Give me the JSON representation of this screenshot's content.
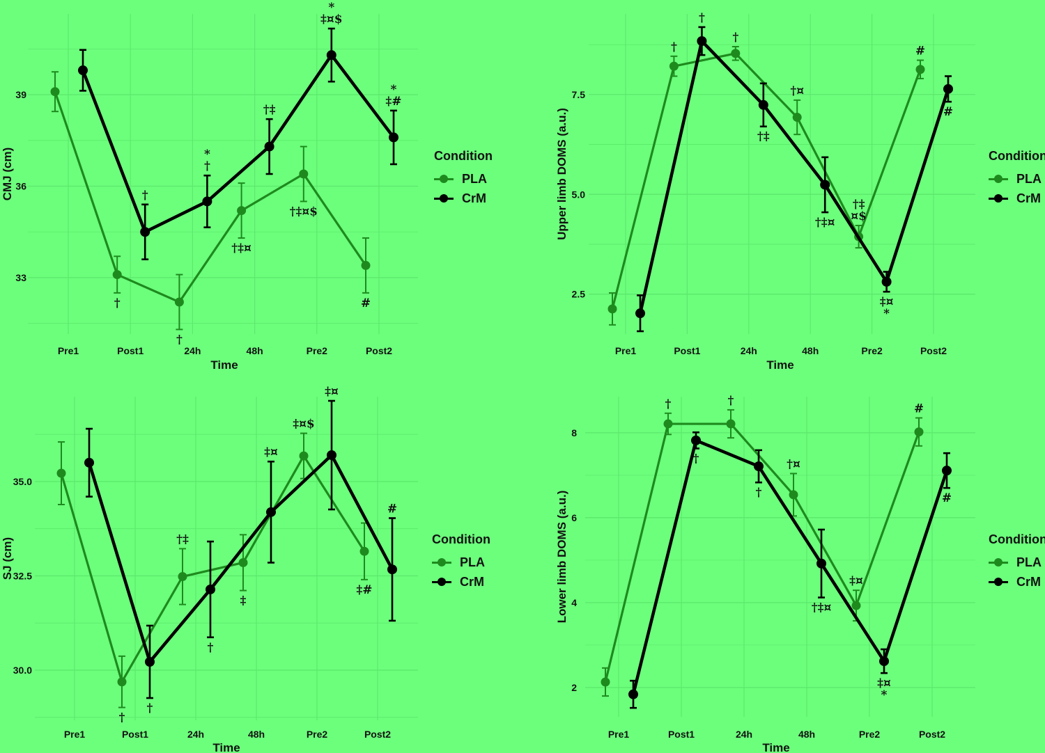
{
  "colors": {
    "background": "#6cff7c",
    "grid": "#5de96d",
    "PLA": "#1e8a1e",
    "CrM": "#000000"
  },
  "legend": {
    "title": "Condition",
    "entries": [
      "PLA",
      "CrM"
    ]
  },
  "chart_data": [
    {
      "type": "line",
      "ylabel": "CMJ (cm)",
      "xlabel": "Time",
      "categories": [
        "Pre1",
        "Post1",
        "24h",
        "48h",
        "Pre2",
        "Post2"
      ],
      "yticks": [
        33,
        36,
        39
      ],
      "ytick_labels": [
        "33",
        "36",
        "39"
      ],
      "ylim": [
        31.15,
        41.65
      ],
      "grid": true,
      "legend_position": "right",
      "series": [
        {
          "name": "PLA",
          "values": [
            39.1,
            33.1,
            32.2,
            35.2,
            36.4,
            33.4
          ],
          "errors": [
            0.65,
            0.6,
            0.9,
            0.9,
            0.9,
            0.9
          ],
          "annotations": [
            null,
            {
              "lines": [
                "†"
              ],
              "pos": "below"
            },
            {
              "lines": [
                "†"
              ],
              "pos": "below"
            },
            {
              "lines": [
                "†‡¤"
              ],
              "pos": "below"
            },
            {
              "lines": [
                "†‡¤$"
              ],
              "pos": "below"
            },
            {
              "lines": [
                "#"
              ],
              "pos": "below"
            }
          ]
        },
        {
          "name": "CrM",
          "values": [
            39.8,
            34.5,
            35.5,
            37.3,
            40.3,
            37.6
          ],
          "errors": [
            0.67,
            0.9,
            0.85,
            0.9,
            0.87,
            0.88
          ],
          "annotations": [
            null,
            {
              "lines": [
                "†"
              ],
              "pos": "above"
            },
            {
              "lines": [
                "*",
                "†"
              ],
              "pos": "above"
            },
            {
              "lines": [
                "†‡"
              ],
              "pos": "above"
            },
            {
              "lines": [
                "*",
                "‡¤$"
              ],
              "pos": "above"
            },
            {
              "lines": [
                "*",
                "‡#"
              ],
              "pos": "above"
            }
          ]
        }
      ]
    },
    {
      "type": "line",
      "ylabel": "Upper limb DOMS (a.u.)",
      "xlabel": "Time",
      "categories": [
        "Pre1",
        "Post1",
        "24h",
        "48h",
        "Pre2",
        "Post2"
      ],
      "yticks": [
        2.5,
        5.0,
        7.5
      ],
      "ytick_labels": [
        "2.5",
        "5.0",
        "7.5"
      ],
      "ylim": [
        1.5,
        9.52
      ],
      "grid": true,
      "legend_position": "right",
      "series": [
        {
          "name": "PLA",
          "values": [
            2.13,
            8.21,
            8.53,
            6.93,
            3.94,
            8.13
          ],
          "errors": [
            0.4,
            0.25,
            0.17,
            0.43,
            0.28,
            0.23
          ],
          "annotations": [
            null,
            {
              "lines": [
                "†"
              ],
              "pos": "above"
            },
            {
              "lines": [
                "†"
              ],
              "pos": "above"
            },
            {
              "lines": [
                "†¤"
              ],
              "pos": "above"
            },
            {
              "lines": [
                "†‡",
                "¤$"
              ],
              "pos": "above"
            },
            {
              "lines": [
                "#"
              ],
              "pos": "above"
            }
          ]
        },
        {
          "name": "CrM",
          "values": [
            2.02,
            8.84,
            7.24,
            5.24,
            2.81,
            7.64
          ],
          "errors": [
            0.45,
            0.35,
            0.54,
            0.69,
            0.25,
            0.32
          ],
          "annotations": [
            null,
            {
              "lines": [
                "†"
              ],
              "pos": "above"
            },
            {
              "lines": [
                "†‡"
              ],
              "pos": "below"
            },
            {
              "lines": [
                "†‡¤"
              ],
              "pos": "below"
            },
            {
              "lines": [
                "‡¤",
                "*"
              ],
              "pos": "below"
            },
            {
              "lines": [
                "#"
              ],
              "pos": "below"
            }
          ]
        }
      ]
    },
    {
      "type": "line",
      "ylabel": "SJ (cm)",
      "xlabel": "Time",
      "categories": [
        "Pre1",
        "Post1",
        "24h",
        "48h",
        "Pre2",
        "Post2"
      ],
      "yticks": [
        30.0,
        32.5,
        35.0
      ],
      "ytick_labels": [
        "30.0",
        "32.5",
        "35.0"
      ],
      "ylim": [
        28.67,
        37.25
      ],
      "grid": true,
      "legend_position": "right",
      "series": [
        {
          "name": "PLA",
          "values": [
            35.22,
            29.69,
            32.48,
            32.85,
            35.68,
            33.15
          ],
          "errors": [
            0.83,
            0.68,
            0.74,
            0.74,
            0.6,
            0.75
          ],
          "annotations": [
            null,
            {
              "lines": [
                "†"
              ],
              "pos": "below"
            },
            {
              "lines": [
                "†‡"
              ],
              "pos": "above"
            },
            {
              "lines": [
                "‡"
              ],
              "pos": "below"
            },
            {
              "lines": [
                "‡¤$"
              ],
              "pos": "above"
            },
            {
              "lines": [
                "‡#"
              ],
              "pos": "below"
            }
          ]
        },
        {
          "name": "CrM",
          "values": [
            35.5,
            30.22,
            32.14,
            34.19,
            35.7,
            32.67
          ],
          "errors": [
            0.9,
            0.96,
            1.27,
            1.34,
            1.44,
            1.36
          ],
          "annotations": [
            null,
            {
              "lines": [
                "†"
              ],
              "pos": "below"
            },
            {
              "lines": [
                "†"
              ],
              "pos": "below"
            },
            {
              "lines": [
                "‡¤"
              ],
              "pos": "above"
            },
            {
              "lines": [
                "‡¤"
              ],
              "pos": "above"
            },
            {
              "lines": [
                "#"
              ],
              "pos": "above"
            }
          ]
        }
      ]
    },
    {
      "type": "line",
      "ylabel": "Lower limb DOMS (a.u.)",
      "xlabel": "Time",
      "categories": [
        "Pre1",
        "Post1",
        "24h",
        "48h",
        "Pre2",
        "Post2"
      ],
      "yticks": [
        2,
        4,
        6,
        8
      ],
      "ytick_labels": [
        "2",
        "4",
        "6",
        "8"
      ],
      "ylim": [
        1.31,
        8.85
      ],
      "grid": true,
      "legend_position": "right",
      "series": [
        {
          "name": "PLA",
          "values": [
            2.13,
            8.21,
            8.21,
            6.54,
            3.93,
            8.02
          ],
          "errors": [
            0.33,
            0.25,
            0.33,
            0.5,
            0.36,
            0.33
          ],
          "annotations": [
            null,
            {
              "lines": [
                "†"
              ],
              "pos": "above"
            },
            {
              "lines": [
                "†"
              ],
              "pos": "above"
            },
            {
              "lines": [
                "†¤"
              ],
              "pos": "above"
            },
            {
              "lines": [
                "‡¤"
              ],
              "pos": "above"
            },
            {
              "lines": [
                "#"
              ],
              "pos": "above"
            }
          ]
        },
        {
          "name": "CrM",
          "values": [
            1.84,
            7.82,
            7.21,
            4.92,
            2.62,
            7.11
          ],
          "errors": [
            0.32,
            0.19,
            0.38,
            0.8,
            0.28,
            0.41
          ],
          "annotations": [
            null,
            {
              "lines": [
                "†"
              ],
              "pos": "below"
            },
            {
              "lines": [
                "†"
              ],
              "pos": "below"
            },
            {
              "lines": [
                "†‡¤"
              ],
              "pos": "below"
            },
            {
              "lines": [
                "‡¤",
                "*"
              ],
              "pos": "below"
            },
            {
              "lines": [
                "#"
              ],
              "pos": "below"
            }
          ]
        }
      ]
    }
  ]
}
